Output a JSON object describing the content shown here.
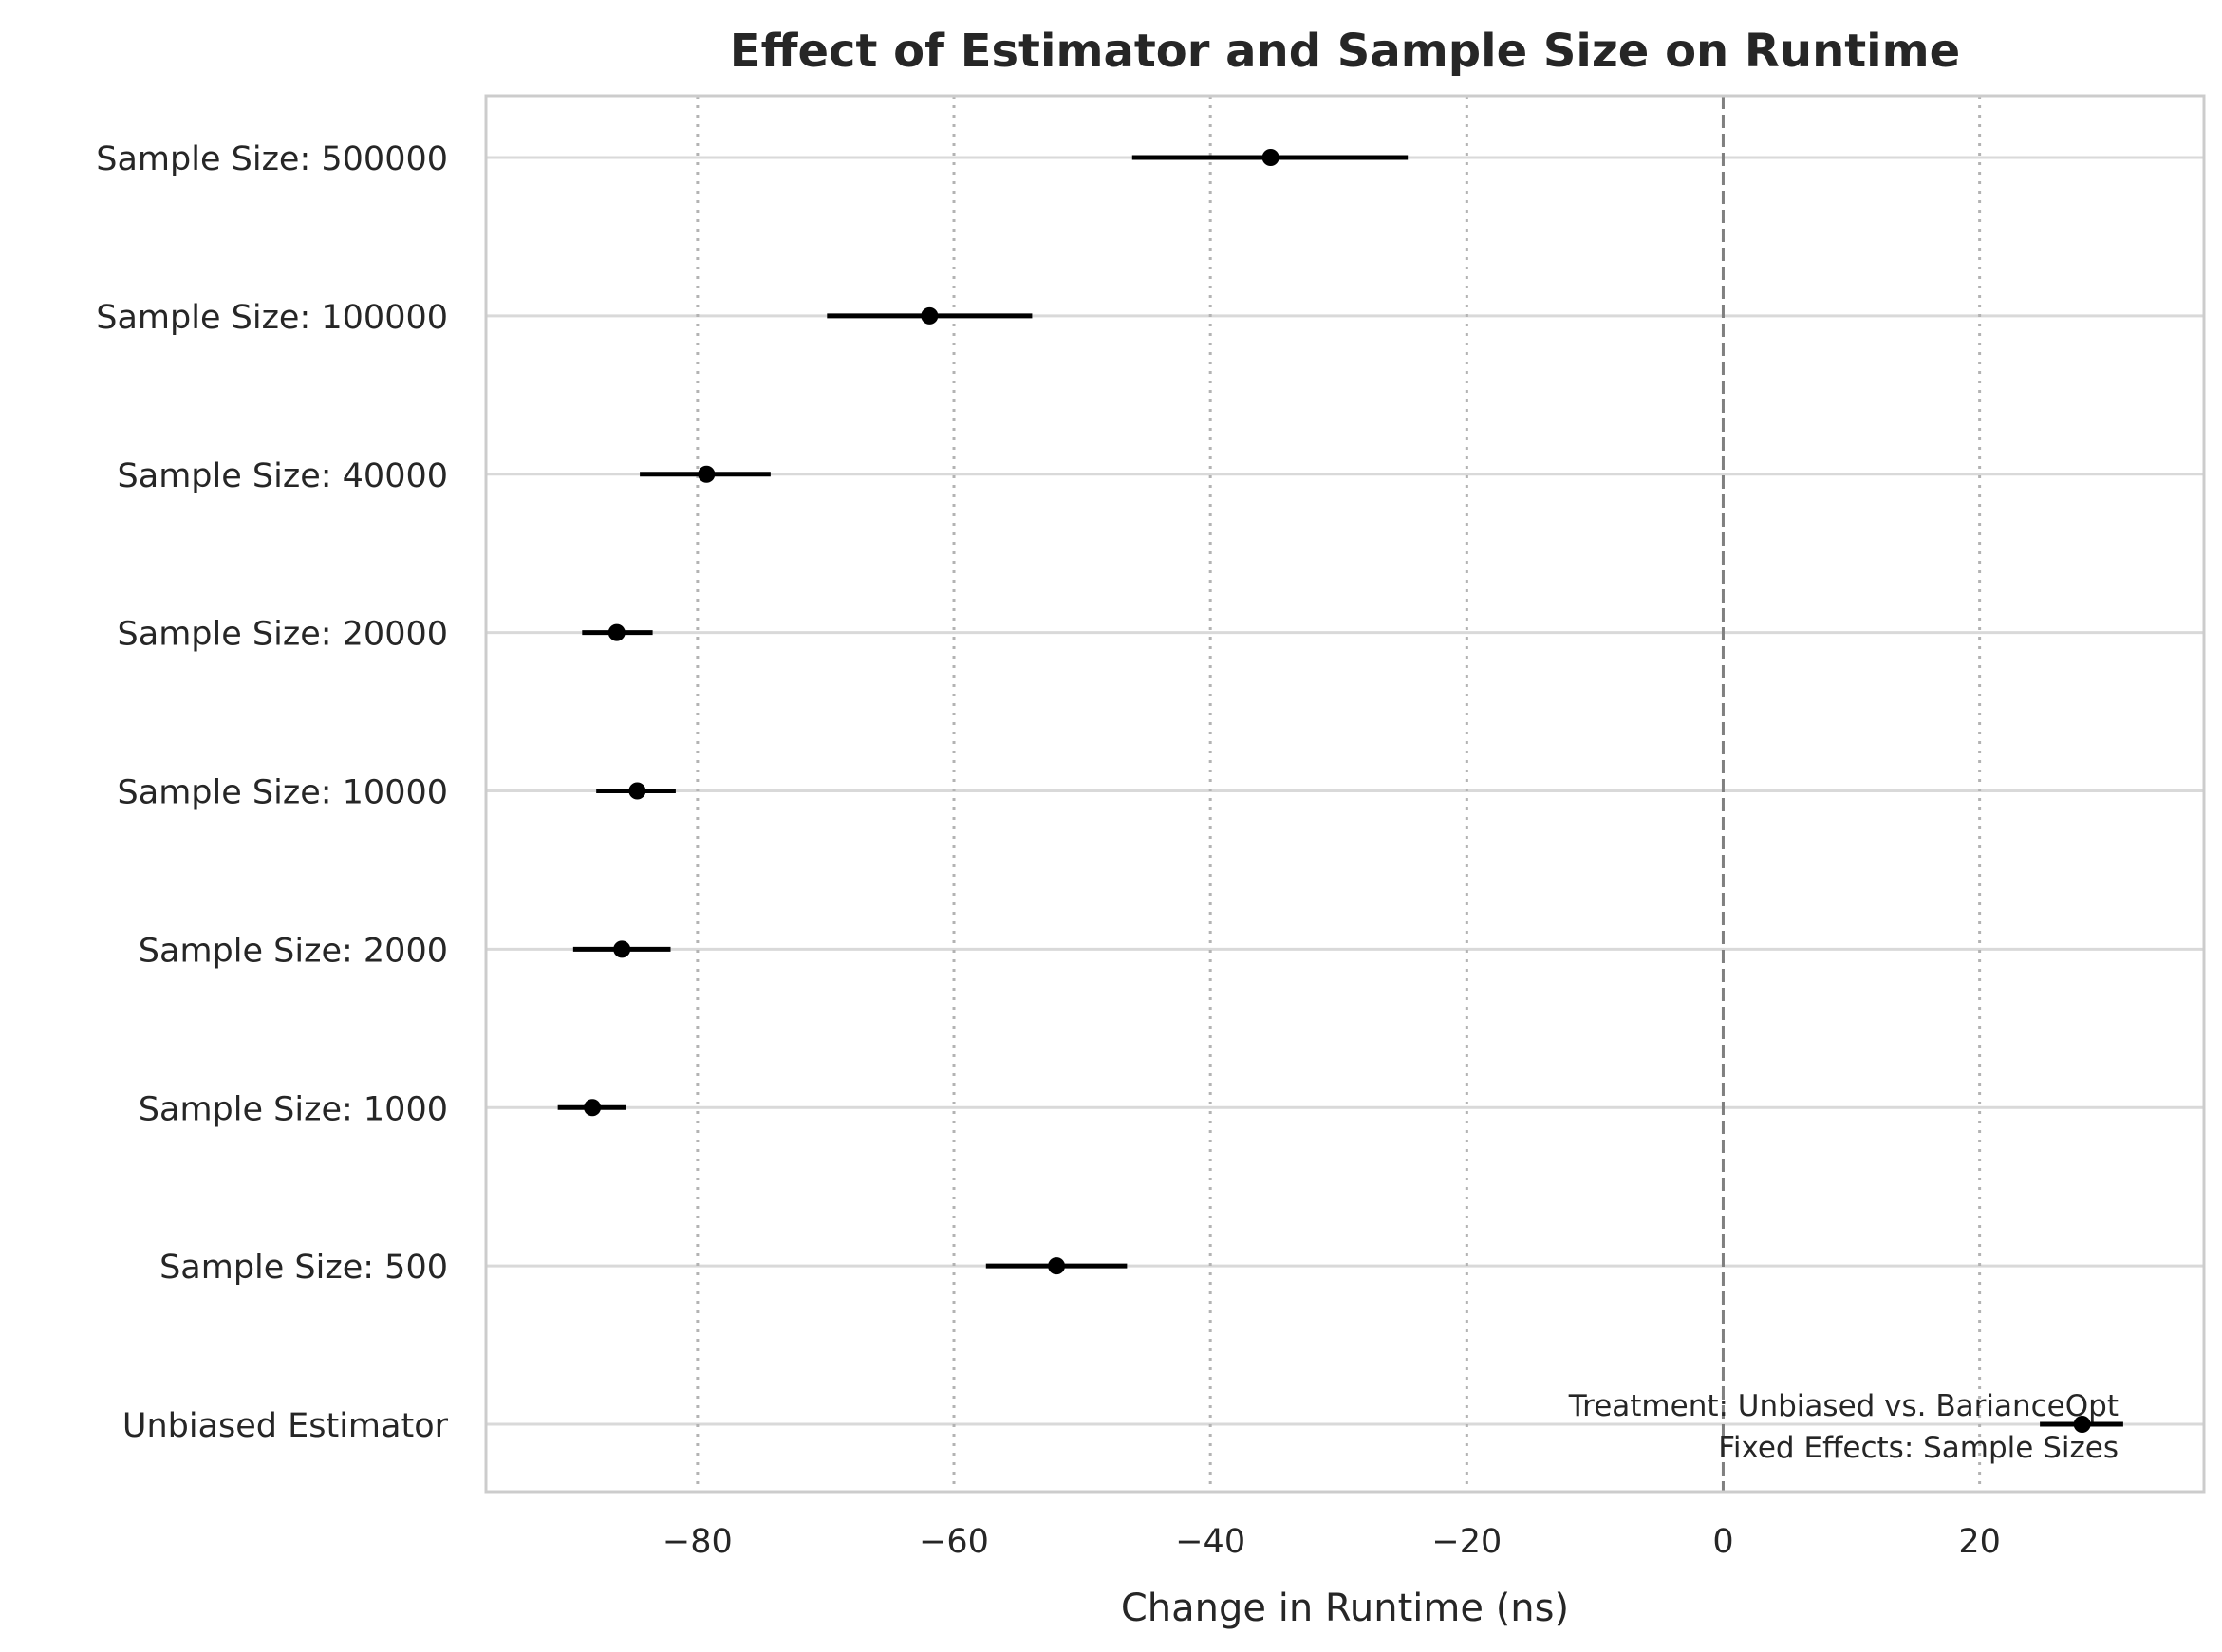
{
  "chart_data": {
    "type": "forest-plot",
    "title": "Effect of Estimator and Sample Size on Runtime",
    "xlabel": "Change in Runtime (ns)",
    "ylabel": "",
    "xlim": [
      -96.5,
      37.5
    ],
    "xticks": [
      -80,
      -60,
      -40,
      -20,
      0,
      20
    ],
    "xtick_labels": [
      "−80",
      "−60",
      "−40",
      "−20",
      "0",
      "20"
    ],
    "reference_line": 0,
    "grid": true,
    "categories": [
      "Sample Size: 500000",
      "Sample Size: 100000",
      "Sample Size: 40000",
      "Sample Size: 20000",
      "Sample Size: 10000",
      "Sample Size: 2000",
      "Sample Size: 1000",
      "Sample Size: 500",
      "Unbiased Estimator"
    ],
    "estimates": [
      -35.3,
      -61.9,
      -79.3,
      -86.3,
      -84.7,
      -85.9,
      -88.2,
      -52.0,
      28.0
    ],
    "ci_lower": [
      -46.1,
      -69.9,
      -84.5,
      -89.0,
      -87.9,
      -89.7,
      -90.9,
      -57.5,
      24.7
    ],
    "ci_upper": [
      -24.6,
      -53.9,
      -74.3,
      -83.5,
      -81.7,
      -82.1,
      -85.6,
      -46.5,
      31.2
    ],
    "annotation": [
      "Treatment: Unbiased vs. BarianceOpt",
      "Fixed Effects: Sample Sizes"
    ],
    "colors": {
      "marker": "#000000",
      "grid": "#d9d9d9",
      "reference": "#808080",
      "spine": "#cccccc",
      "text": "#262626"
    }
  }
}
